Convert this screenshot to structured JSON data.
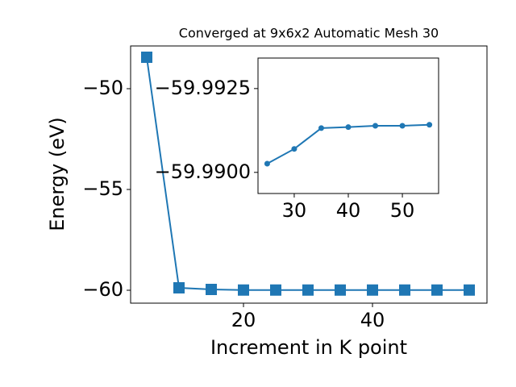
{
  "chart_data": [
    {
      "type": "line",
      "title": "Converged at 9x6x2 Automatic Mesh 30",
      "x_label": "Increment in K point",
      "y_label": "Energy (eV)",
      "series": [
        {
          "color": "#1f77b4",
          "marker": "square",
          "x": [
            5,
            10,
            15,
            20,
            25,
            30,
            35,
            40,
            45,
            50,
            55
          ],
          "values": [
            -48.44,
            -59.88,
            -59.96,
            -59.99,
            -59.99,
            -59.99,
            -59.99,
            -59.99,
            -59.99,
            -59.99,
            -59.99
          ]
        }
      ],
      "xlim": [
        2.5,
        57.75
      ],
      "xticks": [
        20,
        40
      ],
      "ylim": [
        -60.64,
        -47.88
      ],
      "yticks": [
        {
          "value": -60,
          "label": "−60"
        },
        {
          "value": -55,
          "label": "−55"
        },
        {
          "value": -50,
          "label": "−50"
        }
      ]
    },
    {
      "type": "line",
      "series": [
        {
          "color": "#1f77b4",
          "marker": "circle",
          "x": [
            25,
            30,
            35,
            40,
            45,
            50,
            55
          ],
          "values": [
            -59.99026,
            -59.9907,
            -59.99132,
            -59.99135,
            -59.99139,
            -59.99139,
            -59.99142
          ]
        }
      ],
      "xlim": [
        23.3,
        56.7
      ],
      "xticks": [
        30,
        40,
        50
      ],
      "ylim": [
        -59.98937,
        -59.99341
      ],
      "yticks": [
        {
          "value": -59.99,
          "label": "−59.9900"
        },
        {
          "value": -59.9925,
          "label": "−59.9925"
        }
      ]
    }
  ]
}
